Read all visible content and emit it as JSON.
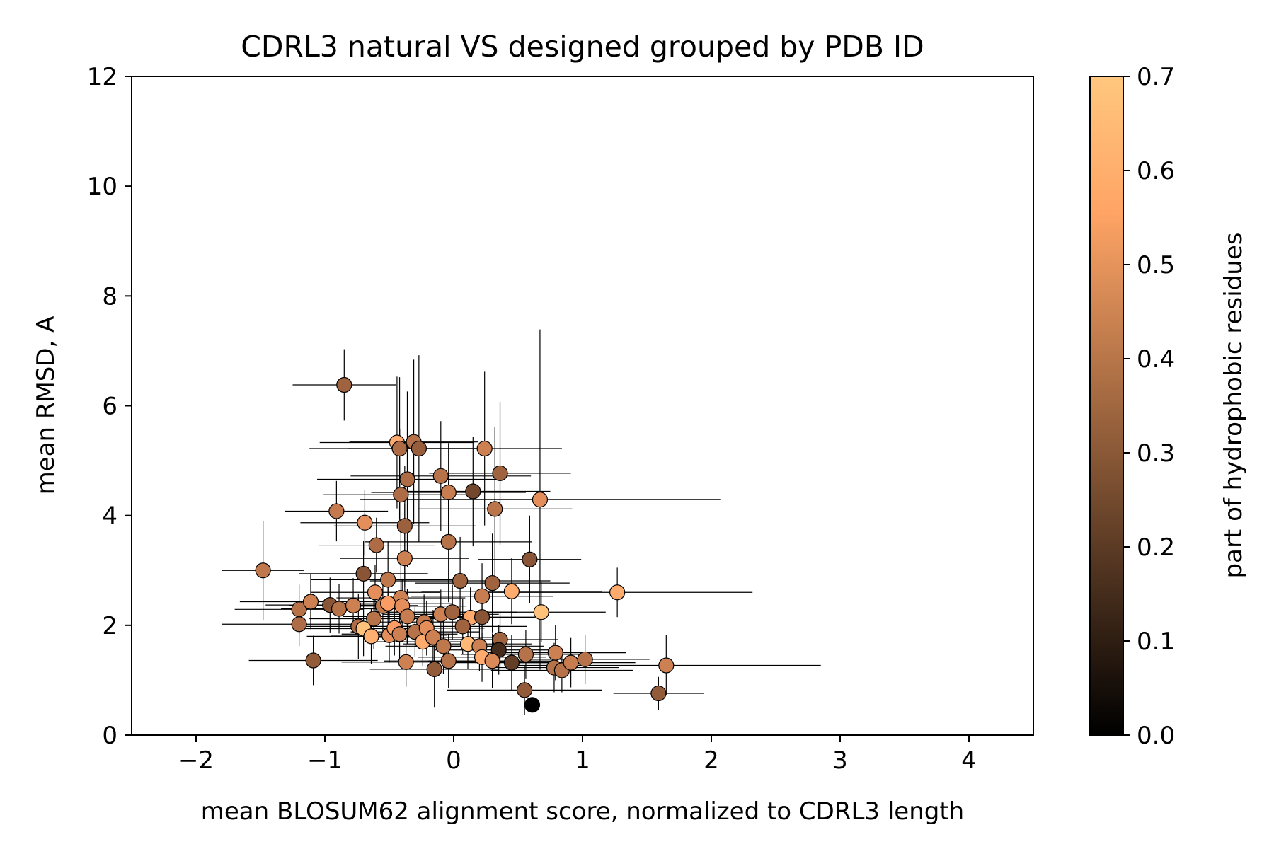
{
  "chart_data": {
    "type": "scatter",
    "title": "CDRL3 natural VS designed grouped by PDB ID",
    "xlabel": "mean BLOSUM62 alignment score, normalized to CDRL3 length",
    "ylabel": "mean RMSD, A",
    "xlim": [
      -2.5,
      4.5
    ],
    "ylim": [
      0,
      12
    ],
    "xticks": [
      -2,
      -1,
      0,
      1,
      2,
      3,
      4
    ],
    "yticks": [
      0,
      2,
      4,
      6,
      8,
      10,
      12
    ],
    "xtick_labels": [
      "−2",
      "−1",
      "0",
      "1",
      "2",
      "3",
      "4"
    ],
    "ytick_labels": [
      "0",
      "2",
      "4",
      "6",
      "8",
      "10",
      "12"
    ],
    "grid": false,
    "legend": "none",
    "colorbar": {
      "label": "part of hydrophobic residues",
      "range": [
        0,
        0.7
      ],
      "ticks": [
        0,
        0.1,
        0.2,
        0.3,
        0.4,
        0.5,
        0.6,
        0.7
      ],
      "tick_labels": [
        "0.0",
        "0.1",
        "0.2",
        "0.3",
        "0.4",
        "0.5",
        "0.6",
        "0.7"
      ],
      "colormap": "copper",
      "color_low": "#000000",
      "color_high": "#ffc77f"
    },
    "marker_edge_color": "#000000",
    "errorbar_color": "#000000",
    "points": [
      {
        "x": -0.85,
        "y": 6.38,
        "xerr": 0.4,
        "yerr": 0.65,
        "c": 0.35
      },
      {
        "x": -1.48,
        "y": 3.0,
        "xerr": 0.32,
        "yerr": 0.9,
        "c": 0.42
      },
      {
        "x": -0.91,
        "y": 4.08,
        "xerr": 0.4,
        "yerr": 0.55,
        "c": 0.43
      },
      {
        "x": -0.69,
        "y": 3.87,
        "xerr": 0.5,
        "yerr": 0.6,
        "c": 0.5
      },
      {
        "x": -0.6,
        "y": 3.46,
        "xerr": 0.45,
        "yerr": 0.5,
        "c": 0.38
      },
      {
        "x": -0.44,
        "y": 5.33,
        "xerr": 0.6,
        "yerr": 1.2,
        "c": 0.6
      },
      {
        "x": -0.42,
        "y": 5.22,
        "xerr": 0.7,
        "yerr": 1.3,
        "c": 0.38
      },
      {
        "x": -0.31,
        "y": 5.34,
        "xerr": 0.5,
        "yerr": 1.5,
        "c": 0.4
      },
      {
        "x": -0.27,
        "y": 5.22,
        "xerr": 0.55,
        "yerr": 1.7,
        "c": 0.33
      },
      {
        "x": -0.36,
        "y": 4.66,
        "xerr": 0.7,
        "yerr": 1.6,
        "c": 0.38
      },
      {
        "x": -0.41,
        "y": 4.38,
        "xerr": 0.6,
        "yerr": 1.2,
        "c": 0.38
      },
      {
        "x": -0.38,
        "y": 3.81,
        "xerr": 0.55,
        "yerr": 1.1,
        "c": 0.34
      },
      {
        "x": -0.38,
        "y": 3.22,
        "xerr": 0.5,
        "yerr": 1.0,
        "c": 0.45
      },
      {
        "x": -0.1,
        "y": 4.72,
        "xerr": 0.7,
        "yerr": 1.0,
        "c": 0.4
      },
      {
        "x": -0.04,
        "y": 4.42,
        "xerr": 0.6,
        "yerr": 0.9,
        "c": 0.44
      },
      {
        "x": 0.15,
        "y": 4.44,
        "xerr": 0.6,
        "yerr": 1.0,
        "c": 0.25
      },
      {
        "x": 0.24,
        "y": 5.22,
        "xerr": 0.6,
        "yerr": 1.4,
        "c": 0.45
      },
      {
        "x": 0.36,
        "y": 4.77,
        "xerr": 0.55,
        "yerr": 1.3,
        "c": 0.35
      },
      {
        "x": 0.32,
        "y": 4.12,
        "xerr": 0.6,
        "yerr": 1.5,
        "c": 0.41
      },
      {
        "x": 0.67,
        "y": 4.29,
        "xerr": 1.4,
        "yerr": 3.1,
        "c": 0.5
      },
      {
        "x": -0.04,
        "y": 3.52,
        "xerr": 0.65,
        "yerr": 1.1,
        "c": 0.4
      },
      {
        "x": 0.59,
        "y": 3.2,
        "xerr": 0.4,
        "yerr": 0.8,
        "c": 0.3
      },
      {
        "x": -0.7,
        "y": 2.94,
        "xerr": 0.5,
        "yerr": 0.6,
        "c": 0.3
      },
      {
        "x": -0.51,
        "y": 2.83,
        "xerr": 0.6,
        "yerr": 0.7,
        "c": 0.42
      },
      {
        "x": 0.05,
        "y": 2.81,
        "xerr": 0.7,
        "yerr": 0.8,
        "c": 0.35
      },
      {
        "x": 0.3,
        "y": 2.77,
        "xerr": 0.6,
        "yerr": 0.9,
        "c": 0.35
      },
      {
        "x": 0.45,
        "y": 2.62,
        "xerr": 0.7,
        "yerr": 0.6,
        "c": 0.6
      },
      {
        "x": 1.27,
        "y": 2.6,
        "xerr": 1.05,
        "yerr": 0.45,
        "c": 0.6
      },
      {
        "x": 0.68,
        "y": 2.24,
        "xerr": 0.5,
        "yerr": 0.55,
        "c": 0.68
      },
      {
        "x": -0.61,
        "y": 2.6,
        "xerr": 0.5,
        "yerr": 0.5,
        "c": 0.5
      },
      {
        "x": -0.41,
        "y": 2.5,
        "xerr": 0.5,
        "yerr": 0.6,
        "c": 0.45
      },
      {
        "x": 0.22,
        "y": 2.53,
        "xerr": 0.55,
        "yerr": 0.6,
        "c": 0.44
      },
      {
        "x": -1.2,
        "y": 2.29,
        "xerr": 0.5,
        "yerr": 0.45,
        "c": 0.4
      },
      {
        "x": -1.2,
        "y": 2.02,
        "xerr": 0.6,
        "yerr": 0.4,
        "c": 0.38
      },
      {
        "x": -1.11,
        "y": 2.43,
        "xerr": 0.55,
        "yerr": 0.5,
        "c": 0.45
      },
      {
        "x": -0.96,
        "y": 2.37,
        "xerr": 0.5,
        "yerr": 0.5,
        "c": 0.3
      },
      {
        "x": -0.89,
        "y": 2.3,
        "xerr": 0.45,
        "yerr": 0.45,
        "c": 0.4
      },
      {
        "x": -0.78,
        "y": 2.36,
        "xerr": 0.5,
        "yerr": 0.5,
        "c": 0.45
      },
      {
        "x": -0.74,
        "y": 1.98,
        "xerr": 0.5,
        "yerr": 0.6,
        "c": 0.38
      },
      {
        "x": -0.62,
        "y": 2.12,
        "xerr": 0.5,
        "yerr": 0.55,
        "c": 0.4
      },
      {
        "x": -0.55,
        "y": 2.35,
        "xerr": 0.45,
        "yerr": 0.5,
        "c": 0.42
      },
      {
        "x": -0.51,
        "y": 2.4,
        "xerr": 0.5,
        "yerr": 0.5,
        "c": 0.55
      },
      {
        "x": -0.4,
        "y": 2.35,
        "xerr": 0.5,
        "yerr": 0.5,
        "c": 0.5
      },
      {
        "x": -0.36,
        "y": 2.16,
        "xerr": 0.5,
        "yerr": 0.5,
        "c": 0.44
      },
      {
        "x": -0.23,
        "y": 2.06,
        "xerr": 0.45,
        "yerr": 0.5,
        "c": 0.43
      },
      {
        "x": -0.1,
        "y": 2.2,
        "xerr": 0.45,
        "yerr": 0.45,
        "c": 0.45
      },
      {
        "x": -0.01,
        "y": 2.24,
        "xerr": 0.5,
        "yerr": 0.5,
        "c": 0.35
      },
      {
        "x": 0.13,
        "y": 2.14,
        "xerr": 0.5,
        "yerr": 0.55,
        "c": 0.6
      },
      {
        "x": 0.22,
        "y": 2.15,
        "xerr": 0.5,
        "yerr": 0.5,
        "c": 0.3
      },
      {
        "x": 0.07,
        "y": 1.98,
        "xerr": 0.5,
        "yerr": 0.5,
        "c": 0.35
      },
      {
        "x": -0.7,
        "y": 1.94,
        "xerr": 0.45,
        "yerr": 0.5,
        "c": 0.68
      },
      {
        "x": -0.64,
        "y": 1.8,
        "xerr": 0.5,
        "yerr": 0.5,
        "c": 0.62
      },
      {
        "x": -0.5,
        "y": 1.82,
        "xerr": 0.45,
        "yerr": 0.5,
        "c": 0.5
      },
      {
        "x": -0.46,
        "y": 1.95,
        "xerr": 0.5,
        "yerr": 0.5,
        "c": 0.55
      },
      {
        "x": -0.42,
        "y": 1.84,
        "xerr": 0.45,
        "yerr": 0.5,
        "c": 0.45
      },
      {
        "x": -0.3,
        "y": 1.88,
        "xerr": 0.5,
        "yerr": 0.45,
        "c": 0.4
      },
      {
        "x": -0.24,
        "y": 1.7,
        "xerr": 0.45,
        "yerr": 0.45,
        "c": 0.6
      },
      {
        "x": -0.21,
        "y": 1.95,
        "xerr": 0.45,
        "yerr": 0.5,
        "c": 0.5
      },
      {
        "x": -0.16,
        "y": 1.78,
        "xerr": 0.5,
        "yerr": 0.5,
        "c": 0.45
      },
      {
        "x": -0.08,
        "y": 1.62,
        "xerr": 0.45,
        "yerr": 0.5,
        "c": 0.42
      },
      {
        "x": 0.11,
        "y": 1.66,
        "xerr": 0.5,
        "yerr": 0.45,
        "c": 0.65
      },
      {
        "x": 0.2,
        "y": 1.62,
        "xerr": 0.5,
        "yerr": 0.45,
        "c": 0.45
      },
      {
        "x": 0.36,
        "y": 1.74,
        "xerr": 0.45,
        "yerr": 0.5,
        "c": 0.35
      },
      {
        "x": 0.35,
        "y": 1.55,
        "xerr": 0.5,
        "yerr": 0.45,
        "c": 0.15
      },
      {
        "x": 0.22,
        "y": 1.42,
        "xerr": 0.5,
        "yerr": 0.45,
        "c": 0.6
      },
      {
        "x": 0.3,
        "y": 1.35,
        "xerr": 0.5,
        "yerr": 0.5,
        "c": 0.48
      },
      {
        "x": 0.45,
        "y": 1.32,
        "xerr": 0.5,
        "yerr": 0.5,
        "c": 0.22
      },
      {
        "x": 0.56,
        "y": 1.47,
        "xerr": 0.5,
        "yerr": 0.45,
        "c": 0.4
      },
      {
        "x": 0.79,
        "y": 1.5,
        "xerr": 0.55,
        "yerr": 0.5,
        "c": 0.45
      },
      {
        "x": 0.78,
        "y": 1.23,
        "xerr": 0.5,
        "yerr": 0.45,
        "c": 0.4
      },
      {
        "x": 0.84,
        "y": 1.18,
        "xerr": 0.55,
        "yerr": 0.4,
        "c": 0.4
      },
      {
        "x": 0.91,
        "y": 1.32,
        "xerr": 0.5,
        "yerr": 0.45,
        "c": 0.44
      },
      {
        "x": 1.02,
        "y": 1.38,
        "xerr": 0.5,
        "yerr": 0.45,
        "c": 0.4
      },
      {
        "x": 1.65,
        "y": 1.27,
        "xerr": 1.2,
        "yerr": 0.55,
        "c": 0.45
      },
      {
        "x": -1.09,
        "y": 1.36,
        "xerr": 0.5,
        "yerr": 0.45,
        "c": 0.32
      },
      {
        "x": -0.37,
        "y": 1.33,
        "xerr": 0.5,
        "yerr": 0.45,
        "c": 0.45
      },
      {
        "x": -0.04,
        "y": 1.35,
        "xerr": 0.5,
        "yerr": 0.5,
        "c": 0.4
      },
      {
        "x": -0.15,
        "y": 1.2,
        "xerr": 0.5,
        "yerr": 0.7,
        "c": 0.32
      },
      {
        "x": 0.55,
        "y": 0.82,
        "xerr": 0.6,
        "yerr": 0.45,
        "c": 0.32
      },
      {
        "x": 1.59,
        "y": 0.76,
        "xerr": 0.35,
        "yerr": 0.3,
        "c": 0.32
      },
      {
        "x": 0.61,
        "y": 0.55,
        "xerr": 0.0,
        "yerr": 0.0,
        "c": 0.0
      }
    ]
  }
}
